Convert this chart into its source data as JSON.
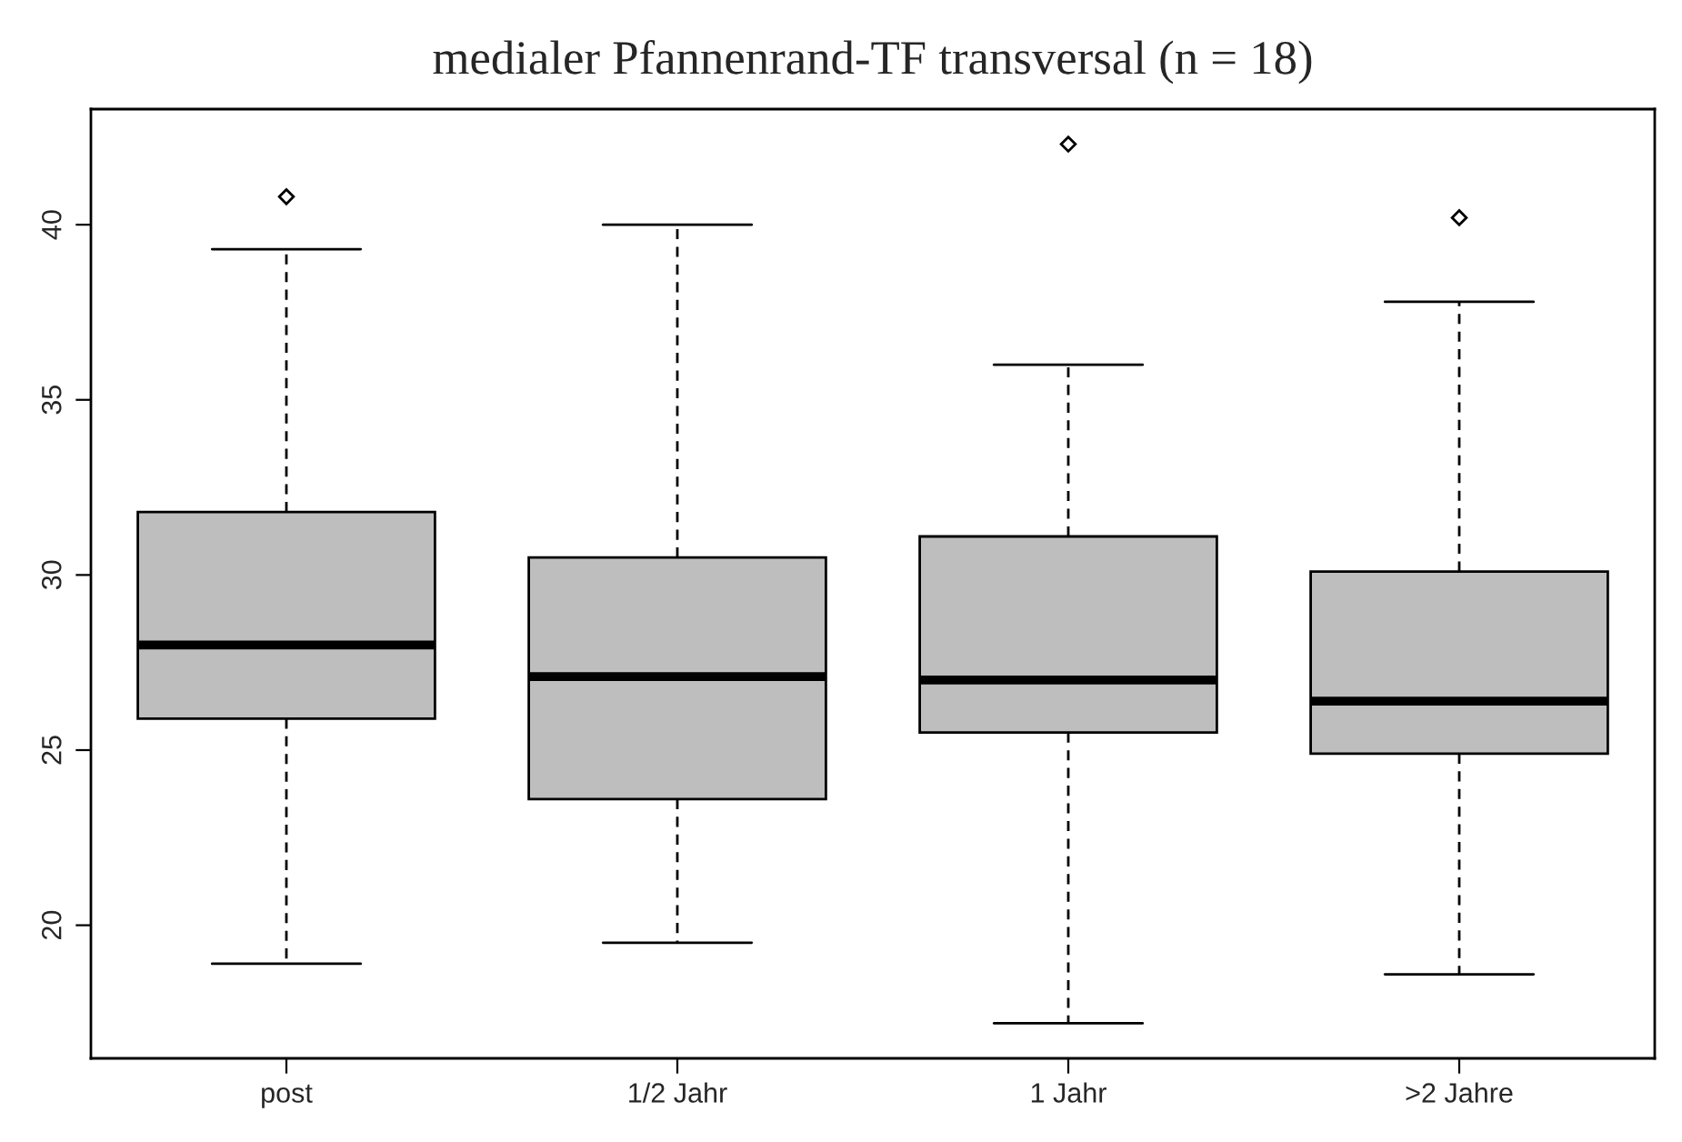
{
  "chart_data": {
    "type": "box",
    "title": "medialer Pfannenrand-TF transversal (n = 18)",
    "categories": [
      "post",
      "1/2 Jahr",
      "1 Jahr",
      ">2 Jahre"
    ],
    "boxes": [
      {
        "low": 18.9,
        "q1": 25.9,
        "median": 28.0,
        "q3": 31.8,
        "high": 39.3,
        "outliers": [
          40.8
        ]
      },
      {
        "low": 19.5,
        "q1": 23.6,
        "median": 27.1,
        "q3": 30.5,
        "high": 40.0
      },
      {
        "low": 17.2,
        "q1": 25.5,
        "median": 27.0,
        "q3": 31.1,
        "high": 36.0,
        "outliers": [
          42.3
        ]
      },
      {
        "low": 18.6,
        "q1": 24.9,
        "median": 26.4,
        "q3": 30.1,
        "high": 37.8,
        "outliers": [
          40.2
        ]
      }
    ],
    "color": "#bebebe",
    "ylim": [
      16.2,
      43.3
    ],
    "yticks": [
      20,
      25,
      30,
      35,
      40
    ],
    "grid": false
  }
}
